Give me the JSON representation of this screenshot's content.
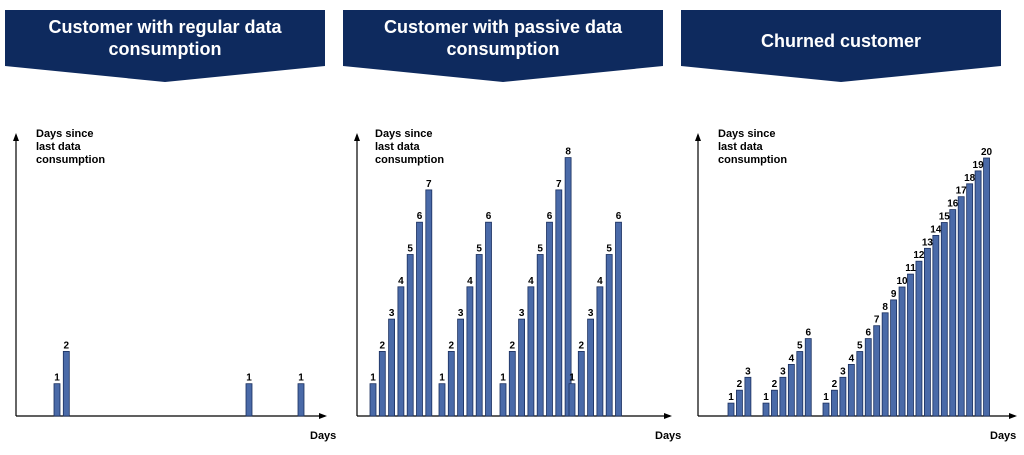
{
  "colors": {
    "banner": "#0e2a5e",
    "bar_fill": "#4a6aa8",
    "bar_stroke": "#1a2f5e",
    "axis": "#000000"
  },
  "panels": [
    {
      "banner_title": "Customer with regular data\nconsumption",
      "ylabel": "Days since\nlast data\nconsumption",
      "xlabel": "Days"
    },
    {
      "banner_title": "Customer with passive data\nconsumption",
      "ylabel": "Days since\nlast data\nconsumption",
      "xlabel": "Days"
    },
    {
      "banner_title": "Churned customer",
      "ylabel": "Days since\nlast data\nconsumption",
      "xlabel": "Days"
    }
  ],
  "chart_data": [
    {
      "type": "bar",
      "title": "Customer with regular data consumption",
      "ylabel": "Days since last data consumption",
      "xlabel": "Days",
      "ylim": [
        0,
        8
      ],
      "groups": [
        [
          1,
          2
        ],
        [
          1
        ],
        [
          1
        ]
      ],
      "values": [
        1,
        2,
        1,
        1
      ]
    },
    {
      "type": "bar",
      "title": "Customer with passive data consumption",
      "ylabel": "Days since last data consumption",
      "xlabel": "Days",
      "ylim": [
        0,
        8
      ],
      "groups": [
        [
          1,
          2,
          3,
          4,
          5,
          6,
          7
        ],
        [
          1,
          2,
          3,
          4,
          5,
          6
        ],
        [
          1,
          2,
          3,
          4,
          5,
          6,
          7,
          8
        ],
        [
          1,
          2,
          3,
          4,
          5,
          6
        ]
      ],
      "values": [
        1,
        2,
        3,
        4,
        5,
        6,
        7,
        1,
        2,
        3,
        4,
        5,
        6,
        1,
        2,
        3,
        4,
        5,
        6,
        7,
        8,
        1,
        2,
        3,
        4,
        5,
        6
      ]
    },
    {
      "type": "bar",
      "title": "Churned customer",
      "ylabel": "Days since last data consumption",
      "xlabel": "Days",
      "ylim": [
        0,
        20
      ],
      "groups": [
        [
          1,
          2,
          3
        ],
        [
          1,
          2,
          3,
          4,
          5,
          6
        ],
        [
          1,
          2,
          3,
          4,
          5,
          6,
          7,
          8,
          9,
          10,
          11,
          12,
          13,
          14,
          15,
          16,
          17,
          18,
          19,
          20
        ]
      ],
      "values": [
        1,
        2,
        3,
        1,
        2,
        3,
        4,
        5,
        6,
        1,
        2,
        3,
        4,
        5,
        6,
        7,
        8,
        9,
        10,
        11,
        12,
        13,
        14,
        15,
        16,
        17,
        18,
        19,
        20
      ]
    }
  ]
}
